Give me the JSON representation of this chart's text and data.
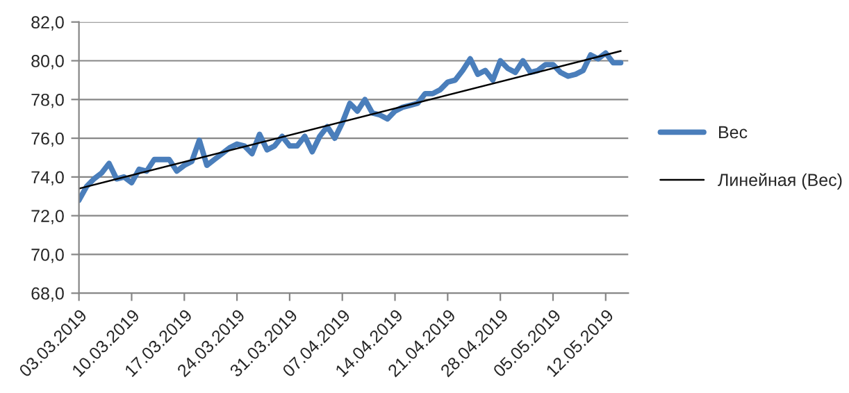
{
  "chart_data": {
    "type": "line",
    "x": [
      "2019-03-03",
      "2019-03-04",
      "2019-03-05",
      "2019-03-06",
      "2019-03-07",
      "2019-03-08",
      "2019-03-09",
      "2019-03-10",
      "2019-03-11",
      "2019-03-12",
      "2019-03-13",
      "2019-03-14",
      "2019-03-15",
      "2019-03-16",
      "2019-03-17",
      "2019-03-18",
      "2019-03-19",
      "2019-03-20",
      "2019-03-21",
      "2019-03-22",
      "2019-03-23",
      "2019-03-24",
      "2019-03-25",
      "2019-03-26",
      "2019-03-27",
      "2019-03-28",
      "2019-03-29",
      "2019-03-30",
      "2019-03-31",
      "2019-04-01",
      "2019-04-02",
      "2019-04-03",
      "2019-04-04",
      "2019-04-05",
      "2019-04-06",
      "2019-04-07",
      "2019-04-08",
      "2019-04-09",
      "2019-04-10",
      "2019-04-11",
      "2019-04-12",
      "2019-04-13",
      "2019-04-14",
      "2019-04-15",
      "2019-04-16",
      "2019-04-17",
      "2019-04-18",
      "2019-04-19",
      "2019-04-20",
      "2019-04-21",
      "2019-04-22",
      "2019-04-23",
      "2019-04-24",
      "2019-04-25",
      "2019-04-26",
      "2019-04-27",
      "2019-04-28",
      "2019-04-29",
      "2019-04-30",
      "2019-05-01",
      "2019-05-02",
      "2019-05-03",
      "2019-05-04",
      "2019-05-05",
      "2019-05-06",
      "2019-05-07",
      "2019-05-08",
      "2019-05-09",
      "2019-05-10",
      "2019-05-11",
      "2019-05-12",
      "2019-05-13",
      "2019-05-14"
    ],
    "series": [
      {
        "name": "Вес",
        "color": "#4a7ebb",
        "values": [
          72.8,
          73.5,
          73.9,
          74.2,
          74.7,
          73.9,
          74.0,
          73.7,
          74.4,
          74.3,
          74.9,
          74.9,
          74.9,
          74.3,
          74.6,
          74.8,
          75.9,
          74.6,
          74.9,
          75.2,
          75.5,
          75.7,
          75.6,
          75.2,
          76.2,
          75.4,
          75.6,
          76.1,
          75.6,
          75.6,
          76.1,
          75.3,
          76.1,
          76.6,
          76.0,
          76.8,
          77.8,
          77.4,
          78.0,
          77.3,
          77.2,
          77.0,
          77.4,
          77.6,
          77.7,
          77.8,
          78.3,
          78.3,
          78.5,
          78.9,
          79.0,
          79.5,
          80.1,
          79.3,
          79.5,
          79.0,
          80.0,
          79.6,
          79.4,
          80.0,
          79.4,
          79.5,
          79.8,
          79.8,
          79.4,
          79.2,
          79.3,
          79.5,
          80.3,
          80.1,
          80.4,
          79.9,
          79.9
        ]
      },
      {
        "name": "Линейная (Вес)",
        "color": "#000000",
        "x": [
          "2019-03-03",
          "2019-05-14"
        ],
        "values": [
          73.4,
          80.5
        ]
      }
    ],
    "xlim": [
      "2019-03-03",
      "2019-05-15"
    ],
    "xticks": [
      {
        "value": "2019-03-03",
        "label": "03.03.2019"
      },
      {
        "value": "2019-03-10",
        "label": "10.03.2019"
      },
      {
        "value": "2019-03-17",
        "label": "17.03.2019"
      },
      {
        "value": "2019-03-24",
        "label": "24.03.2019"
      },
      {
        "value": "2019-03-31",
        "label": "31.03.2019"
      },
      {
        "value": "2019-04-07",
        "label": "07.04.2019"
      },
      {
        "value": "2019-04-14",
        "label": "14.04.2019"
      },
      {
        "value": "2019-04-21",
        "label": "21.04.2019"
      },
      {
        "value": "2019-04-28",
        "label": "28.04.2019"
      },
      {
        "value": "2019-05-05",
        "label": "05.05.2019"
      },
      {
        "value": "2019-05-12",
        "label": "12.05.2019"
      }
    ],
    "ylim": [
      68,
      82
    ],
    "yticks": [
      {
        "value": 68,
        "label": "68,0"
      },
      {
        "value": 70,
        "label": "70,0"
      },
      {
        "value": 72,
        "label": "72,0"
      },
      {
        "value": 74,
        "label": "74,0"
      },
      {
        "value": 76,
        "label": "76,0"
      },
      {
        "value": 78,
        "label": "78,0"
      },
      {
        "value": 80,
        "label": "80,0"
      },
      {
        "value": 82,
        "label": "82,0"
      }
    ],
    "grid": "y",
    "legend": "right",
    "marker": "none",
    "line_style": "solid"
  }
}
